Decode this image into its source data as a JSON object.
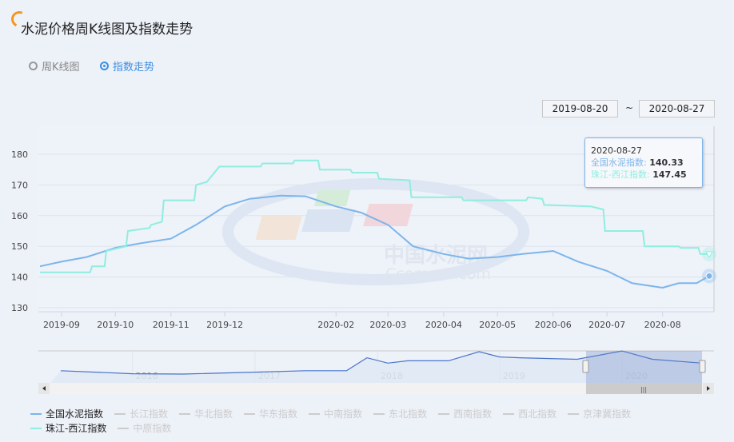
{
  "header": {
    "title": "水泥价格周K线图及指数走势"
  },
  "view_toggle": [
    {
      "label": "周K线图",
      "selected": false
    },
    {
      "label": "指数走势",
      "selected": true
    }
  ],
  "range": {
    "from": "2019-08-20",
    "separator": "~",
    "to": "2020-08-27"
  },
  "watermark": {
    "cn": "中国水泥网",
    "en": "Ccement.com"
  },
  "tooltip": {
    "date": "2020-08-27",
    "rows": [
      {
        "label": "全国水泥指数",
        "value": "140.33"
      },
      {
        "label": "珠江-西江指数",
        "value": "147.45"
      }
    ]
  },
  "legend": [
    {
      "label": "全国水泥指数",
      "active": true,
      "color": "#7cb5ec"
    },
    {
      "label": "长江指数",
      "active": false
    },
    {
      "label": "华北指数",
      "active": false
    },
    {
      "label": "华东指数",
      "active": false
    },
    {
      "label": "中南指数",
      "active": false
    },
    {
      "label": "东北指数",
      "active": false
    },
    {
      "label": "西南指数",
      "active": false
    },
    {
      "label": "西北指数",
      "active": false
    },
    {
      "label": "京津冀指数",
      "active": false
    },
    {
      "label": "珠江-西江指数",
      "active": true,
      "color": "#90ede0"
    },
    {
      "label": "中原指数",
      "active": false
    }
  ],
  "navigator": {
    "years": [
      "2016",
      "2017",
      "2018",
      "2019",
      "2020"
    ]
  },
  "chart_data": {
    "type": "line",
    "xlabel": "",
    "ylabel": "",
    "xlim": [
      "2019-08-20",
      "2020-08-27"
    ],
    "ylim": [
      130,
      185
    ],
    "yticks": [
      130,
      140,
      150,
      160,
      170,
      180
    ],
    "xticks": [
      "2019-09",
      "2019-10",
      "2019-11",
      "2019-12",
      "2020-02",
      "2020-03",
      "2020-04",
      "2020-05",
      "2020-06",
      "2020-07",
      "2020-08"
    ],
    "grid": true,
    "series": [
      {
        "name": "全国水泥指数",
        "color": "#7cb5ec",
        "points": [
          [
            "2019-08-20",
            143.5
          ],
          [
            "2019-09-01",
            145
          ],
          [
            "2019-09-15",
            146.5
          ],
          [
            "2019-10-01",
            149.5
          ],
          [
            "2019-10-15",
            151
          ],
          [
            "2019-11-01",
            152.5
          ],
          [
            "2019-11-15",
            157
          ],
          [
            "2019-12-01",
            163
          ],
          [
            "2019-12-15",
            165.5
          ],
          [
            "2020-01-01",
            166.5
          ],
          [
            "2020-01-15",
            166.3
          ],
          [
            "2020-02-01",
            163
          ],
          [
            "2020-02-15",
            161
          ],
          [
            "2020-03-01",
            157
          ],
          [
            "2020-03-15",
            150
          ],
          [
            "2020-04-01",
            147.5
          ],
          [
            "2020-04-15",
            146
          ],
          [
            "2020-05-01",
            146.5
          ],
          [
            "2020-05-15",
            147.5
          ],
          [
            "2020-06-01",
            148.5
          ],
          [
            "2020-06-15",
            145
          ],
          [
            "2020-07-01",
            142
          ],
          [
            "2020-07-15",
            138
          ],
          [
            "2020-08-01",
            136.5
          ],
          [
            "2020-08-10",
            138
          ],
          [
            "2020-08-20",
            138
          ],
          [
            "2020-08-27",
            140.33
          ]
        ]
      },
      {
        "name": "珠江-西江指数",
        "color": "#90ede0",
        "points": [
          [
            "2019-08-20",
            141.5
          ],
          [
            "2019-09-17",
            141.5
          ],
          [
            "2019-09-18",
            143.5
          ],
          [
            "2019-09-25",
            143.5
          ],
          [
            "2019-09-26",
            148.5
          ],
          [
            "2019-10-07",
            150
          ],
          [
            "2019-10-08",
            155
          ],
          [
            "2019-10-20",
            156
          ],
          [
            "2019-10-21",
            157
          ],
          [
            "2019-10-27",
            158
          ],
          [
            "2019-10-28",
            165
          ],
          [
            "2019-11-14",
            165
          ],
          [
            "2019-11-15",
            170
          ],
          [
            "2019-11-21",
            171
          ],
          [
            "2019-11-28",
            176
          ],
          [
            "2019-12-21",
            176
          ],
          [
            "2019-12-22",
            177
          ],
          [
            "2020-01-08",
            177
          ],
          [
            "2020-01-09",
            178
          ],
          [
            "2020-01-22",
            178
          ],
          [
            "2020-01-23",
            175
          ],
          [
            "2020-02-09",
            175
          ],
          [
            "2020-02-10",
            174
          ],
          [
            "2020-02-24",
            174
          ],
          [
            "2020-02-25",
            172
          ],
          [
            "2020-03-13",
            171.5
          ],
          [
            "2020-03-14",
            166
          ],
          [
            "2020-04-11",
            166
          ],
          [
            "2020-04-12",
            165
          ],
          [
            "2020-05-17",
            165
          ],
          [
            "2020-05-18",
            166
          ],
          [
            "2020-05-26",
            165.5
          ],
          [
            "2020-05-27",
            163.5
          ],
          [
            "2020-06-22",
            163
          ],
          [
            "2020-06-29",
            162
          ],
          [
            "2020-06-30",
            155
          ],
          [
            "2020-07-21",
            155
          ],
          [
            "2020-07-22",
            150
          ],
          [
            "2020-08-10",
            150
          ],
          [
            "2020-08-11",
            149.5
          ],
          [
            "2020-08-21",
            149.5
          ],
          [
            "2020-08-22",
            147.5
          ],
          [
            "2020-08-27",
            147.45
          ]
        ]
      }
    ],
    "navigator_series": [
      [
        "2015-06-01",
        140
      ],
      [
        "2016-01-01",
        136
      ],
      [
        "2016-06-01",
        135.5
      ],
      [
        "2017-01-01",
        138
      ],
      [
        "2017-06-01",
        140
      ],
      [
        "2017-10-01",
        140
      ],
      [
        "2017-12-01",
        157
      ],
      [
        "2018-02-01",
        150
      ],
      [
        "2018-04-01",
        153
      ],
      [
        "2018-08-01",
        153
      ],
      [
        "2018-11-01",
        165
      ],
      [
        "2019-01-01",
        158
      ],
      [
        "2019-03-01",
        157
      ],
      [
        "2019-08-20",
        155
      ],
      [
        "2020-01-01",
        166
      ],
      [
        "2020-04-01",
        155
      ],
      [
        "2020-08-27",
        150
      ]
    ]
  }
}
